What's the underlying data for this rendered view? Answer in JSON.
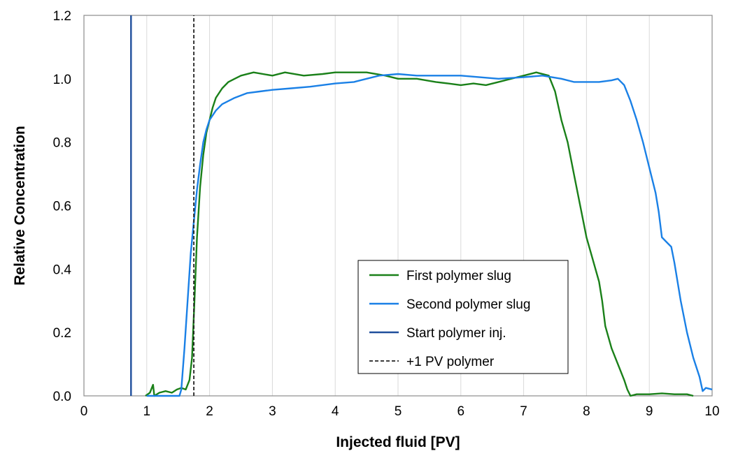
{
  "chart_data": {
    "type": "line",
    "title": "",
    "xlabel": "Injected fluid [PV]",
    "ylabel": "Relative Concentration",
    "xlim": [
      0,
      10
    ],
    "ylim": [
      0,
      1.2
    ],
    "x_ticks": [
      "0",
      "1",
      "2",
      "3",
      "4",
      "5",
      "6",
      "7",
      "8",
      "9",
      "10"
    ],
    "y_ticks": [
      "0.0",
      "0.2",
      "0.4",
      "0.6",
      "0.8",
      "1.0",
      "1.2"
    ],
    "grid": "vertical",
    "legend_position": "bottom-right",
    "series": [
      {
        "name": "First polymer slug",
        "color": "#1a8019",
        "style": "solid",
        "points": [
          [
            0.98,
            0.0
          ],
          [
            1.05,
            0.01
          ],
          [
            1.1,
            0.035
          ],
          [
            1.12,
            0.0
          ],
          [
            1.2,
            0.01
          ],
          [
            1.3,
            0.015
          ],
          [
            1.4,
            0.01
          ],
          [
            1.48,
            0.02
          ],
          [
            1.55,
            0.025
          ],
          [
            1.62,
            0.02
          ],
          [
            1.68,
            0.05
          ],
          [
            1.72,
            0.12
          ],
          [
            1.76,
            0.3
          ],
          [
            1.8,
            0.5
          ],
          [
            1.85,
            0.66
          ],
          [
            1.9,
            0.76
          ],
          [
            1.95,
            0.83
          ],
          [
            2.0,
            0.87
          ],
          [
            2.05,
            0.91
          ],
          [
            2.1,
            0.94
          ],
          [
            2.2,
            0.97
          ],
          [
            2.3,
            0.99
          ],
          [
            2.4,
            1.0
          ],
          [
            2.5,
            1.01
          ],
          [
            2.7,
            1.02
          ],
          [
            3.0,
            1.01
          ],
          [
            3.2,
            1.02
          ],
          [
            3.5,
            1.01
          ],
          [
            3.8,
            1.015
          ],
          [
            4.0,
            1.02
          ],
          [
            4.3,
            1.02
          ],
          [
            4.5,
            1.02
          ],
          [
            4.8,
            1.01
          ],
          [
            5.0,
            1.0
          ],
          [
            5.3,
            1.0
          ],
          [
            5.6,
            0.99
          ],
          [
            5.8,
            0.985
          ],
          [
            6.0,
            0.98
          ],
          [
            6.2,
            0.985
          ],
          [
            6.4,
            0.98
          ],
          [
            6.6,
            0.99
          ],
          [
            6.8,
            1.0
          ],
          [
            7.0,
            1.01
          ],
          [
            7.2,
            1.02
          ],
          [
            7.4,
            1.01
          ],
          [
            7.5,
            0.96
          ],
          [
            7.6,
            0.87
          ],
          [
            7.7,
            0.8
          ],
          [
            7.8,
            0.7
          ],
          [
            7.9,
            0.6
          ],
          [
            8.0,
            0.5
          ],
          [
            8.1,
            0.43
          ],
          [
            8.2,
            0.36
          ],
          [
            8.25,
            0.3
          ],
          [
            8.3,
            0.22
          ],
          [
            8.4,
            0.15
          ],
          [
            8.5,
            0.1
          ],
          [
            8.6,
            0.05
          ],
          [
            8.65,
            0.02
          ],
          [
            8.7,
            0.0
          ],
          [
            8.8,
            0.005
          ],
          [
            9.0,
            0.005
          ],
          [
            9.2,
            0.008
          ],
          [
            9.4,
            0.005
          ],
          [
            9.6,
            0.005
          ],
          [
            9.7,
            0.0
          ]
        ]
      },
      {
        "name": "Second polymer slug",
        "color": "#1a80e6",
        "style": "solid",
        "points": [
          [
            1.0,
            0.0
          ],
          [
            1.3,
            0.0
          ],
          [
            1.52,
            0.0
          ],
          [
            1.55,
            0.02
          ],
          [
            1.6,
            0.15
          ],
          [
            1.65,
            0.3
          ],
          [
            1.7,
            0.45
          ],
          [
            1.75,
            0.55
          ],
          [
            1.8,
            0.65
          ],
          [
            1.85,
            0.73
          ],
          [
            1.9,
            0.8
          ],
          [
            1.95,
            0.84
          ],
          [
            2.0,
            0.87
          ],
          [
            2.1,
            0.9
          ],
          [
            2.2,
            0.92
          ],
          [
            2.4,
            0.94
          ],
          [
            2.6,
            0.955
          ],
          [
            2.8,
            0.96
          ],
          [
            3.0,
            0.965
          ],
          [
            3.3,
            0.97
          ],
          [
            3.6,
            0.975
          ],
          [
            4.0,
            0.985
          ],
          [
            4.3,
            0.99
          ],
          [
            4.5,
            1.0
          ],
          [
            4.7,
            1.01
          ],
          [
            5.0,
            1.015
          ],
          [
            5.3,
            1.01
          ],
          [
            5.6,
            1.01
          ],
          [
            6.0,
            1.01
          ],
          [
            6.3,
            1.005
          ],
          [
            6.6,
            1.0
          ],
          [
            7.0,
            1.005
          ],
          [
            7.3,
            1.01
          ],
          [
            7.6,
            1.0
          ],
          [
            7.8,
            0.99
          ],
          [
            8.0,
            0.99
          ],
          [
            8.2,
            0.99
          ],
          [
            8.4,
            0.995
          ],
          [
            8.5,
            1.0
          ],
          [
            8.6,
            0.98
          ],
          [
            8.7,
            0.93
          ],
          [
            8.8,
            0.87
          ],
          [
            8.9,
            0.8
          ],
          [
            9.0,
            0.72
          ],
          [
            9.1,
            0.64
          ],
          [
            9.15,
            0.58
          ],
          [
            9.2,
            0.5
          ],
          [
            9.3,
            0.48
          ],
          [
            9.35,
            0.47
          ],
          [
            9.4,
            0.42
          ],
          [
            9.5,
            0.3
          ],
          [
            9.6,
            0.2
          ],
          [
            9.7,
            0.12
          ],
          [
            9.8,
            0.06
          ],
          [
            9.85,
            0.015
          ],
          [
            9.9,
            0.025
          ],
          [
            10.0,
            0.02
          ]
        ]
      },
      {
        "name": "Start polymer inj.",
        "color": "#1f4f9c",
        "style": "solid",
        "points": [
          [
            0.75,
            0.0
          ],
          [
            0.75,
            1.2
          ]
        ]
      },
      {
        "name": "+1 PV polymer",
        "color": "#222222",
        "style": "dashed",
        "points": [
          [
            1.75,
            0.0
          ],
          [
            1.75,
            1.2
          ]
        ]
      }
    ]
  }
}
